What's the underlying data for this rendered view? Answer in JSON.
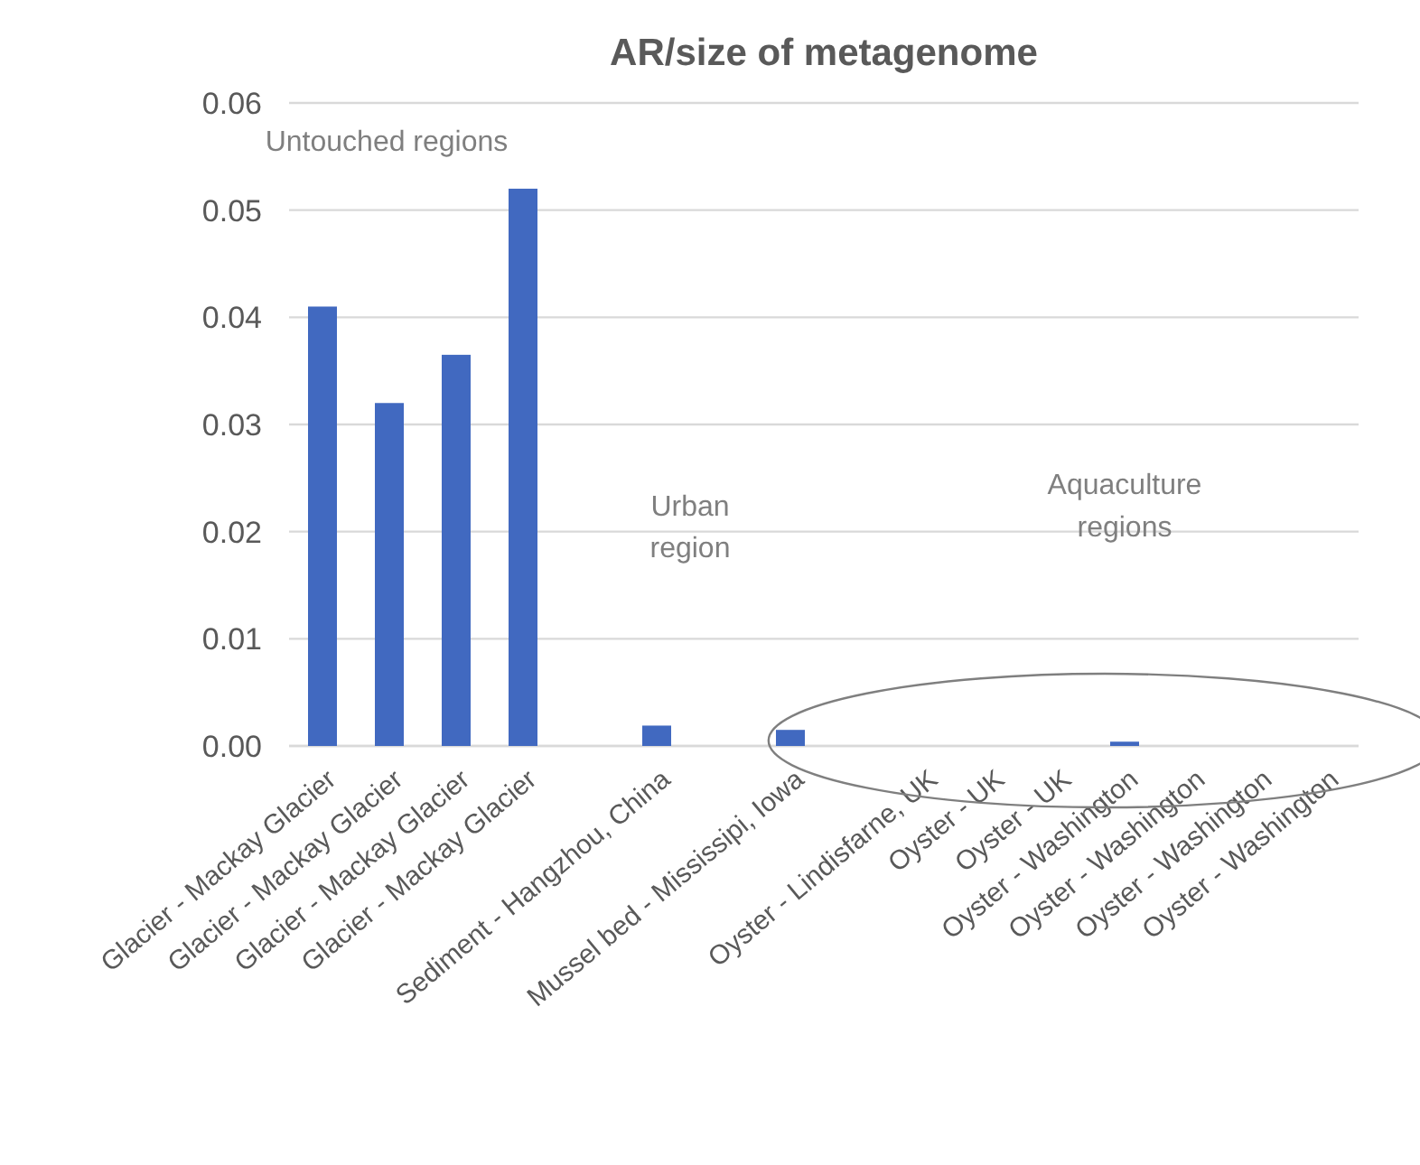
{
  "chart_data": {
    "type": "bar",
    "title": "AR/size of metagenome",
    "categories": [
      "Glacier - Mackay Glacier",
      "Glacier - Mackay Glacier",
      "Glacier - Mackay Glacier",
      "Glacier - Mackay Glacier",
      null,
      "Sediment - Hangzhou, China",
      null,
      "Mussel bed - Mississipi, Iowa",
      null,
      "Oyster - Lindisfarne, UK",
      "Oyster - UK",
      "Oyster - UK",
      "Oyster - Washington",
      "Oyster - Washington",
      "Oyster - Washington",
      "Oyster - Washington"
    ],
    "values": [
      0.041,
      0.032,
      0.0365,
      0.052,
      0,
      0.0019,
      0,
      0.0015,
      0,
      0,
      0,
      0,
      0.0004,
      0,
      0,
      0
    ],
    "color": "#4169c0",
    "ylim": [
      0,
      0.06
    ],
    "yticks": [
      {
        "value": 0,
        "label": "0.00"
      },
      {
        "value": 0.01,
        "label": "0.01"
      },
      {
        "value": 0.02,
        "label": "0.02"
      },
      {
        "value": 0.03,
        "label": "0.03"
      },
      {
        "value": 0.04,
        "label": "0.04"
      },
      {
        "value": 0.05,
        "label": "0.05"
      },
      {
        "value": 0.06,
        "label": "0.06"
      }
    ],
    "grid": "y",
    "annotations": [
      "Untouched regions",
      "Urban region",
      "Aquaculture regions"
    ]
  }
}
